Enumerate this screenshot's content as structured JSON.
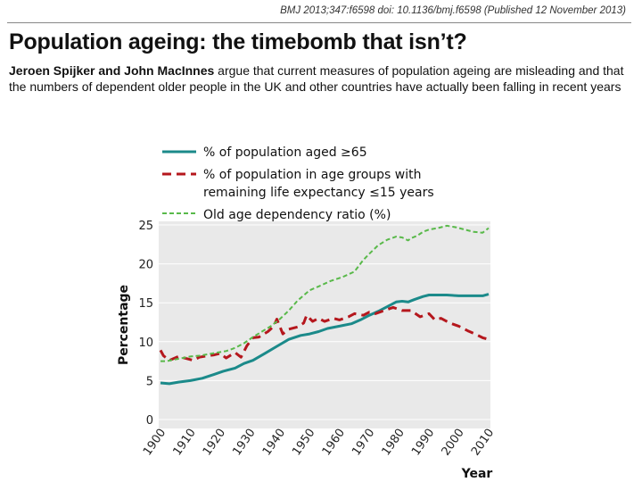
{
  "header": {
    "citation": "BMJ 2013;347:f6598 doi: 10.1136/bmj.f6598 (Published 12 November 2013)",
    "title": "Population ageing: the timebomb that isn’t?",
    "authors": "Jeroen Spijker and John MacInnes",
    "standfirst": " argue that current measures of population ageing are misleading and that the numbers of dependent older people in the UK and other countries have actually been falling in recent years"
  },
  "chart_data": {
    "type": "line",
    "title": "",
    "xlabel": "Year",
    "ylabel": "Percentage",
    "xlim": [
      1900,
      2010
    ],
    "ylim": [
      0,
      25
    ],
    "xticks": [
      "1900",
      "1910",
      "1920",
      "1930",
      "1940",
      "1950",
      "1960",
      "1970",
      "1980",
      "1990",
      "2000",
      "2010"
    ],
    "yticks": [
      "0",
      "5",
      "10",
      "15",
      "20",
      "25"
    ],
    "legend_position": "top",
    "series": [
      {
        "name": "% of population aged ≥65",
        "color": "#1b8a8a",
        "style": "solid",
        "x": [
          1900,
          1903,
          1906,
          1910,
          1914,
          1918,
          1921,
          1925,
          1928,
          1931,
          1935,
          1939,
          1943,
          1947,
          1950,
          1953,
          1956,
          1960,
          1964,
          1967,
          1970,
          1973,
          1976,
          1979,
          1981,
          1983,
          1985,
          1988,
          1990,
          1993,
          1996,
          2000,
          2003,
          2006,
          2008,
          2010
        ],
        "values": [
          4.7,
          4.6,
          4.8,
          5.0,
          5.3,
          5.8,
          6.2,
          6.6,
          7.2,
          7.6,
          8.5,
          9.4,
          10.3,
          10.8,
          11.0,
          11.3,
          11.7,
          12.0,
          12.3,
          12.8,
          13.4,
          13.9,
          14.5,
          15.1,
          15.2,
          15.1,
          15.4,
          15.8,
          16.0,
          16.0,
          16.0,
          15.9,
          15.9,
          15.9,
          15.9,
          16.1
        ]
      },
      {
        "name": "% of population in age groups with remaining life expectancy ≤15 years",
        "color": "#b5171d",
        "style": "dashed",
        "x": [
          1900,
          1901,
          1903,
          1906,
          1908,
          1911,
          1913,
          1916,
          1918,
          1920,
          1922,
          1925,
          1927,
          1929,
          1931,
          1933,
          1936,
          1938,
          1939,
          1941,
          1943,
          1946,
          1948,
          1949,
          1951,
          1953,
          1955,
          1958,
          1960,
          1963,
          1965,
          1968,
          1970,
          1972,
          1975,
          1978,
          1981,
          1984,
          1987,
          1990,
          1992,
          1994,
          1997,
          2000,
          2003,
          2006,
          2008,
          2010
        ],
        "values": [
          8.9,
          8.2,
          7.6,
          8.1,
          7.9,
          7.6,
          8.0,
          8.2,
          8.3,
          8.5,
          7.9,
          8.6,
          8.0,
          9.5,
          10.5,
          10.6,
          11.3,
          12.0,
          12.9,
          11.0,
          11.6,
          11.9,
          12.4,
          13.4,
          12.6,
          13.0,
          12.6,
          13.0,
          12.8,
          13.2,
          13.6,
          13.4,
          13.8,
          13.6,
          14.0,
          14.4,
          14.0,
          14.0,
          13.2,
          13.6,
          12.8,
          13.0,
          12.4,
          12.0,
          11.4,
          10.9,
          10.5,
          10.3
        ]
      },
      {
        "name": "Old age dependency ratio (%)",
        "color": "#59b94a",
        "style": "dotted",
        "x": [
          1900,
          1902,
          1906,
          1910,
          1913,
          1916,
          1919,
          1922,
          1925,
          1928,
          1931,
          1934,
          1937,
          1940,
          1943,
          1946,
          1950,
          1953,
          1957,
          1961,
          1965,
          1968,
          1970,
          1973,
          1976,
          1979,
          1981,
          1983,
          1984,
          1986,
          1988,
          1990,
          1993,
          1996,
          1999,
          2002,
          2005,
          2008,
          2009,
          2010
        ],
        "values": [
          7.5,
          7.5,
          7.8,
          8.1,
          8.2,
          8.4,
          8.6,
          8.8,
          9.2,
          9.8,
          10.6,
          11.3,
          12.0,
          12.9,
          14.0,
          15.3,
          16.6,
          17.1,
          17.8,
          18.3,
          19.0,
          20.5,
          21.3,
          22.4,
          23.1,
          23.5,
          23.4,
          23.0,
          23.3,
          23.6,
          24.1,
          24.4,
          24.6,
          24.9,
          24.7,
          24.4,
          24.1,
          24.0,
          24.3,
          24.6
        ]
      }
    ]
  }
}
